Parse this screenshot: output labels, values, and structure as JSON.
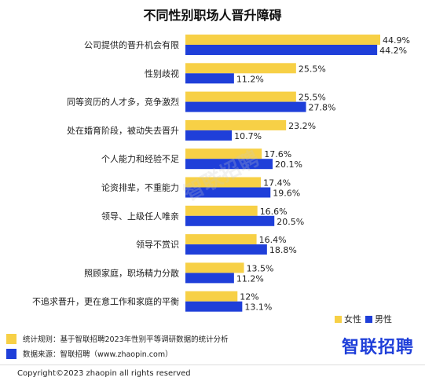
{
  "chart_data": {
    "type": "bar",
    "orientation": "horizontal",
    "title": "不同性别职场人晋升障碍",
    "categories": [
      "公司提供的晋升机会有限",
      "性别歧视",
      "同等资历的人才多，竞争激烈",
      "处在婚育阶段，被动失去晋升",
      "个人能力和经验不足",
      "论资排辈，不重能力",
      "领导、上级任人唯亲",
      "领导不赏识",
      "照顾家庭，职场精力分散",
      "不追求晋升，更在意工作和家庭的平衡"
    ],
    "series": [
      {
        "name": "女性",
        "color": "#f7d046",
        "values": [
          44.9,
          25.5,
          25.5,
          23.2,
          17.6,
          17.4,
          16.6,
          16.4,
          13.5,
          12
        ]
      },
      {
        "name": "男性",
        "color": "#1f3fd9",
        "values": [
          44.2,
          11.2,
          27.8,
          10.7,
          20.1,
          19.6,
          20.5,
          18.8,
          11.2,
          13.1
        ]
      }
    ],
    "value_labels": {
      "series0": [
        "44.9%",
        "25.5%",
        "25.5%",
        "23.2%",
        "17.6%",
        "17.4%",
        "16.6%",
        "16.4%",
        "13.5%",
        "12%"
      ],
      "series1": [
        "44.2%",
        "11.2%",
        "27.8%",
        "10.7%",
        "20.1%",
        "19.6%",
        "20.5%",
        "18.8%",
        "11.2%",
        "13.1%"
      ]
    },
    "xlim": [
      0,
      44.9
    ],
    "legend_position": "bottom-right",
    "grid": false
  },
  "watermark": "智联招聘",
  "notes": [
    {
      "label": "统计规则：基于智联招聘2023年性别平等调研数据的统计分析",
      "color": "#f7d046"
    },
    {
      "label": "数据来源：智联招聘（www.zhaopin.com）",
      "color": "#1f3fd9"
    }
  ],
  "logo": "智联招聘",
  "copyright": "Copyright©2023 zhaopin all rights reserved"
}
